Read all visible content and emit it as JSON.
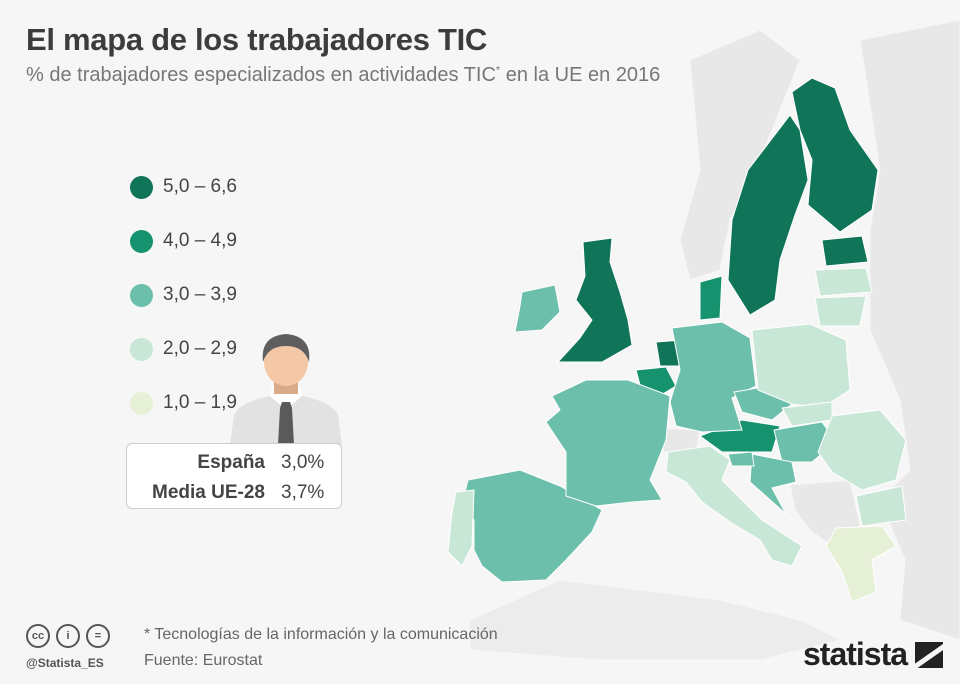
{
  "header": {
    "title": "El mapa de los trabajadores TIC",
    "subtitle": "% de trabajadores especializados en actividades TIC",
    "subtitle_mark": "*",
    "subtitle_end": " en la UE en 2016"
  },
  "legend": [
    {
      "label": "5,0 – 6,6",
      "color": "#0f7458"
    },
    {
      "label": "4,0 – 4,9",
      "color": "#16936e"
    },
    {
      "label": "3,0 – 3,9",
      "color": "#6cbfaa"
    },
    {
      "label": "2,0 – 2,9",
      "color": "#c9e7d6"
    },
    {
      "label": "1,0 – 1,9",
      "color": "#e6f0d6"
    }
  ],
  "infobox": {
    "rows": [
      {
        "label": "España",
        "value": "3,0%"
      },
      {
        "label": "Media UE-28",
        "value": "3,7%"
      }
    ]
  },
  "map_regions": [
    {
      "region": "finland",
      "class": 0
    },
    {
      "region": "sweden",
      "class": 0
    },
    {
      "region": "estonia",
      "class": 0
    },
    {
      "region": "uk",
      "class": 0
    },
    {
      "region": "netherlands",
      "class": 0
    },
    {
      "region": "denmark",
      "class": 1
    },
    {
      "region": "belgium",
      "class": 1
    },
    {
      "region": "austria",
      "class": 1
    },
    {
      "region": "ireland",
      "class": 2
    },
    {
      "region": "spain",
      "class": 2
    },
    {
      "region": "france",
      "class": 2
    },
    {
      "region": "germany",
      "class": 2
    },
    {
      "region": "czechia",
      "class": 2
    },
    {
      "region": "hungary",
      "class": 2
    },
    {
      "region": "croatia",
      "class": 2
    },
    {
      "region": "slovenia",
      "class": 2
    },
    {
      "region": "portugal",
      "class": 3
    },
    {
      "region": "italy",
      "class": 3
    },
    {
      "region": "poland",
      "class": 3
    },
    {
      "region": "slovakia",
      "class": 3
    },
    {
      "region": "romania",
      "class": 3
    },
    {
      "region": "bulgaria",
      "class": 3
    },
    {
      "region": "latvia",
      "class": 3
    },
    {
      "region": "lithuania",
      "class": 3
    },
    {
      "region": "greece",
      "class": 4
    }
  ],
  "footer": {
    "note": "* Tecnologías de la información y la comunicación",
    "source": "Fuente: Eurostat",
    "handle": "@Statista_ES",
    "brand": "statista",
    "license_icons": [
      "cc-icon",
      "attribution-icon",
      "no-derivatives-icon"
    ]
  }
}
